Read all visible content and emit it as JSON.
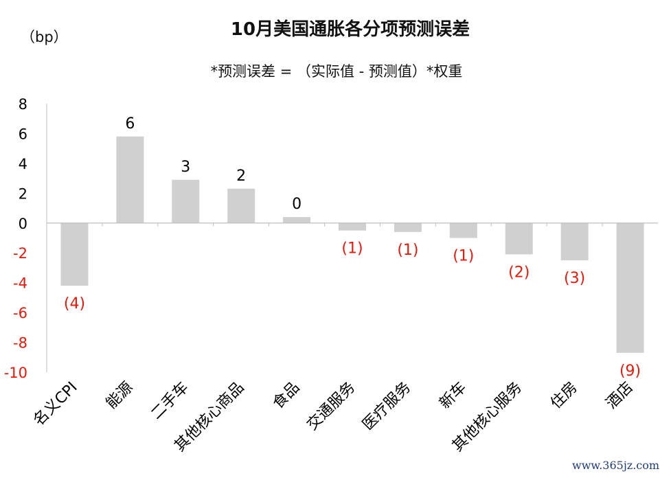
{
  "chart_data": {
    "type": "bar",
    "title": "10月美国通胀各分项预测误差",
    "subtitle": "*预测误差 = （实际值 - 预测值）*权重",
    "unit_label": "（bp）",
    "categories": [
      "名义CPI",
      "能源",
      "二手车",
      "其他核心商品",
      "食品",
      "交通服务",
      "医疗服务",
      "新车",
      "其他核心服务",
      "住房",
      "酒店"
    ],
    "values": [
      -4.2,
      5.8,
      2.9,
      2.3,
      0.4,
      -0.5,
      -0.6,
      -1.0,
      -2.1,
      -2.5,
      -8.7
    ],
    "data_labels": [
      "(4)",
      "6",
      "3",
      "2",
      "0",
      "(1)",
      "(1)",
      "(1)",
      "(2)",
      "(3)",
      "(9)"
    ],
    "y_ticks": [
      "8",
      "6",
      "4",
      "2",
      "0",
      "-2",
      "-4",
      "-6",
      "-8",
      "-10"
    ],
    "ylim": [
      -10,
      8
    ],
    "grid": false,
    "colors": {
      "bar": "#d0d0d0",
      "positive_label": "#000000",
      "negative_label": "#e8190a",
      "negative_tick": "#e8190a",
      "axis": "#bfbfbf"
    }
  },
  "watermark": "www.365jz.com"
}
